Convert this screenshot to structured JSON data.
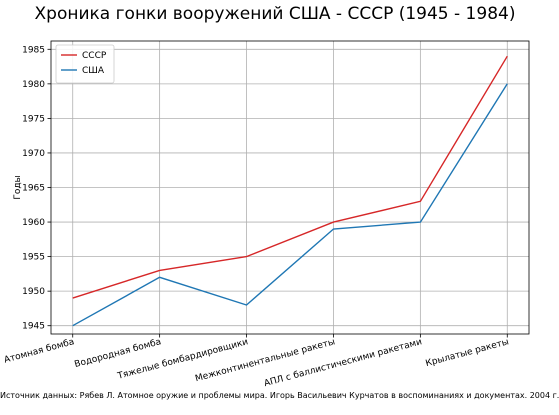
{
  "chart_data": {
    "type": "line",
    "title": "Хроника гонки вооружений США - СССР (1945 - 1984)",
    "ylabel": "Годы",
    "xlabel": "",
    "categories": [
      "Атомная бомба",
      "Водородная бомба",
      "Тяжелые бомбардировщики",
      "Межконтинентальные ракеты",
      "АПЛ с баллистическими ракетами",
      "Крылатые ракеты"
    ],
    "series": [
      {
        "name": "СССР",
        "color": "#d62728",
        "values": [
          1949,
          1953,
          1955,
          1960,
          1963,
          1984
        ]
      },
      {
        "name": "США",
        "color": "#1f77b4",
        "values": [
          1945,
          1952,
          1948,
          1959,
          1960,
          1980
        ]
      }
    ],
    "ylim": [
      1943.8,
      1986.2
    ],
    "yticks": [
      1945,
      1950,
      1955,
      1960,
      1965,
      1970,
      1975,
      1980,
      1985
    ],
    "grid": true,
    "legend": "top-left",
    "source": "Источник данных: Рябев Л. Атомное оружие и проблемы мира. Игорь Васильевич Курчатов в воспоминаниях и документах. 2004 г."
  }
}
